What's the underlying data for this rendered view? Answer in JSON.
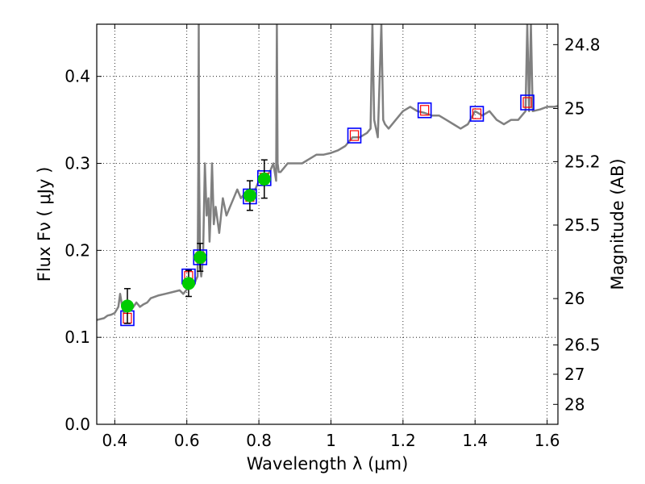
{
  "chart_data": {
    "type": "line",
    "xlabel": "Wavelength  λ (μm)",
    "ylabel": "Flux  Fν  ( μJy )",
    "ylabel_right": "Magnitude (AB)",
    "xlim": [
      0.35,
      1.63
    ],
    "ylim": [
      0.0,
      0.46
    ],
    "grid": true,
    "x_ticks": [
      {
        "value": 0.4,
        "label": "0.4"
      },
      {
        "value": 0.6,
        "label": "0.6"
      },
      {
        "value": 0.8,
        "label": "0.8"
      },
      {
        "value": 1.0,
        "label": "1"
      },
      {
        "value": 1.2,
        "label": "1.2"
      },
      {
        "value": 1.4,
        "label": "1.4"
      },
      {
        "value": 1.6,
        "label": "1.6"
      }
    ],
    "y_ticks": [
      {
        "value": 0.0,
        "label": "0.0"
      },
      {
        "value": 0.1,
        "label": "0.1"
      },
      {
        "value": 0.2,
        "label": "0.2"
      },
      {
        "value": 0.3,
        "label": "0.3"
      },
      {
        "value": 0.4,
        "label": "0.4"
      }
    ],
    "right_ticks": [
      {
        "value": 24.8,
        "label": "24.8"
      },
      {
        "value": 25.0,
        "label": "25"
      },
      {
        "value": 25.2,
        "label": "25.2"
      },
      {
        "value": 25.5,
        "label": "25.5"
      },
      {
        "value": 26.0,
        "label": "26"
      },
      {
        "value": 26.5,
        "label": "26.5"
      },
      {
        "value": 27.0,
        "label": "27"
      },
      {
        "value": 28.0,
        "label": "28"
      }
    ],
    "colors": {
      "model": "#808080",
      "observed": "#00cc00",
      "model_phot": "#0000ff",
      "model_phot_inner": "#ff0000",
      "errorbar": "#000000"
    },
    "series": [
      {
        "kind": "spectrum",
        "x": [
          0.35,
          0.37,
          0.38,
          0.39,
          0.4,
          0.41,
          0.415,
          0.42,
          0.425,
          0.43,
          0.44,
          0.45,
          0.46,
          0.47,
          0.48,
          0.49,
          0.5,
          0.52,
          0.54,
          0.56,
          0.58,
          0.59,
          0.6,
          0.61,
          0.62,
          0.625,
          0.63,
          0.632,
          0.633,
          0.634,
          0.637,
          0.64,
          0.645,
          0.65,
          0.655,
          0.66,
          0.663,
          0.666,
          0.67,
          0.675,
          0.68,
          0.69,
          0.7,
          0.71,
          0.72,
          0.73,
          0.74,
          0.75,
          0.76,
          0.77,
          0.78,
          0.79,
          0.8,
          0.81,
          0.82,
          0.83,
          0.84,
          0.848,
          0.85,
          0.852,
          0.855,
          0.86,
          0.87,
          0.88,
          0.9,
          0.92,
          0.94,
          0.96,
          0.98,
          1.0,
          1.02,
          1.04,
          1.06,
          1.08,
          1.1,
          1.11,
          1.115,
          1.12,
          1.13,
          1.14,
          1.145,
          1.15,
          1.16,
          1.18,
          1.2,
          1.22,
          1.24,
          1.26,
          1.28,
          1.3,
          1.32,
          1.34,
          1.36,
          1.38,
          1.4,
          1.42,
          1.44,
          1.46,
          1.48,
          1.5,
          1.52,
          1.54,
          1.545,
          1.55,
          1.555,
          1.56,
          1.58,
          1.6,
          1.62,
          1.63
        ],
        "y": [
          0.12,
          0.122,
          0.125,
          0.126,
          0.128,
          0.135,
          0.15,
          0.137,
          0.128,
          0.13,
          0.132,
          0.134,
          0.14,
          0.135,
          0.138,
          0.14,
          0.145,
          0.148,
          0.15,
          0.152,
          0.154,
          0.15,
          0.155,
          0.16,
          0.16,
          0.166,
          0.17,
          0.3,
          0.46,
          0.3,
          0.18,
          0.17,
          0.19,
          0.3,
          0.24,
          0.26,
          0.21,
          0.24,
          0.3,
          0.23,
          0.25,
          0.22,
          0.26,
          0.24,
          0.25,
          0.26,
          0.27,
          0.26,
          0.265,
          0.27,
          0.265,
          0.27,
          0.28,
          0.275,
          0.285,
          0.29,
          0.3,
          0.28,
          0.46,
          0.3,
          0.29,
          0.29,
          0.295,
          0.3,
          0.3,
          0.3,
          0.305,
          0.31,
          0.31,
          0.312,
          0.315,
          0.32,
          0.33,
          0.33,
          0.335,
          0.34,
          0.46,
          0.35,
          0.33,
          0.46,
          0.35,
          0.345,
          0.34,
          0.35,
          0.36,
          0.365,
          0.36,
          0.358,
          0.355,
          0.355,
          0.35,
          0.345,
          0.34,
          0.345,
          0.36,
          0.355,
          0.36,
          0.35,
          0.345,
          0.35,
          0.35,
          0.36,
          0.46,
          0.36,
          0.46,
          0.36,
          0.362,
          0.365,
          0.365,
          0.366
        ]
      },
      {
        "kind": "model_photometry",
        "x": [
          0.435,
          0.605,
          0.637,
          0.775,
          0.815,
          1.065,
          1.26,
          1.405,
          1.545
        ],
        "y": [
          0.122,
          0.17,
          0.192,
          0.262,
          0.283,
          0.332,
          0.361,
          0.357,
          0.37
        ]
      },
      {
        "kind": "observed_photometry",
        "x": [
          0.435,
          0.605,
          0.637,
          0.775,
          0.815
        ],
        "y": [
          0.136,
          0.162,
          0.192,
          0.263,
          0.282
        ],
        "yerr": [
          0.02,
          0.015,
          0.016,
          0.017,
          0.022
        ]
      }
    ]
  }
}
